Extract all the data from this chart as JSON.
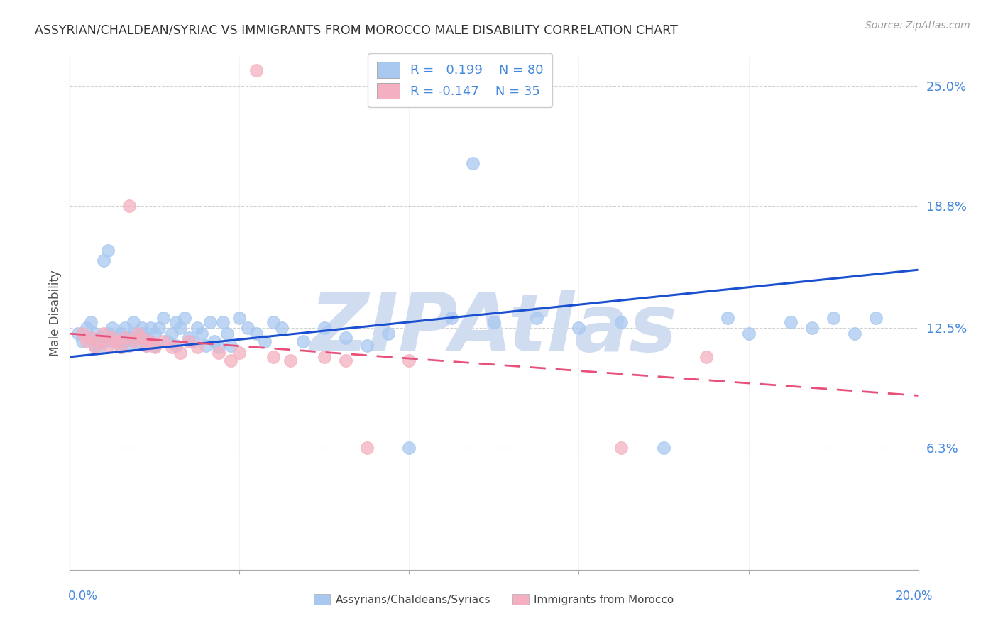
{
  "title": "ASSYRIAN/CHALDEAN/SYRIAC VS IMMIGRANTS FROM MOROCCO MALE DISABILITY CORRELATION CHART",
  "source": "Source: ZipAtlas.com",
  "ylabel": "Male Disability",
  "xlim": [
    0.0,
    0.2
  ],
  "ylim": [
    0.0,
    0.265
  ],
  "ytick_vals": [
    0.0,
    0.063,
    0.125,
    0.188,
    0.25
  ],
  "ytick_labels": [
    "",
    "6.3%",
    "12.5%",
    "18.8%",
    "25.0%"
  ],
  "r_blue": 0.199,
  "n_blue": 80,
  "r_pink": -0.147,
  "n_pink": 35,
  "blue_dot_color": "#A8C8F0",
  "pink_dot_color": "#F4B0C0",
  "blue_line_color": "#1A50D0",
  "pink_line_color": "#E8507A",
  "right_label_color": "#4488DD",
  "watermark_color": "#D0DCF0",
  "legend_label_blue": "Assyrians/Chaldeans/Syriacs",
  "legend_label_pink": "Immigrants from Morocco",
  "blue_x": [
    0.002,
    0.003,
    0.004,
    0.005,
    0.005,
    0.006,
    0.006,
    0.007,
    0.007,
    0.008,
    0.008,
    0.009,
    0.009,
    0.01,
    0.01,
    0.011,
    0.011,
    0.012,
    0.012,
    0.013,
    0.013,
    0.014,
    0.014,
    0.015,
    0.015,
    0.016,
    0.016,
    0.017,
    0.017,
    0.018,
    0.018,
    0.019,
    0.019,
    0.02,
    0.02,
    0.021,
    0.022,
    0.023,
    0.024,
    0.025,
    0.025,
    0.026,
    0.027,
    0.028,
    0.029,
    0.03,
    0.031,
    0.032,
    0.033,
    0.034,
    0.035,
    0.036,
    0.037,
    0.038,
    0.04,
    0.042,
    0.044,
    0.046,
    0.048,
    0.05,
    0.055,
    0.06,
    0.065,
    0.07,
    0.075,
    0.08,
    0.09,
    0.095,
    0.1,
    0.11,
    0.12,
    0.13,
    0.14,
    0.155,
    0.16,
    0.17,
    0.175,
    0.18,
    0.185,
    0.19
  ],
  "blue_y": [
    0.122,
    0.118,
    0.125,
    0.128,
    0.119,
    0.122,
    0.116,
    0.12,
    0.115,
    0.16,
    0.118,
    0.165,
    0.122,
    0.118,
    0.125,
    0.12,
    0.118,
    0.122,
    0.115,
    0.118,
    0.125,
    0.12,
    0.116,
    0.122,
    0.128,
    0.12,
    0.118,
    0.125,
    0.122,
    0.116,
    0.12,
    0.118,
    0.125,
    0.122,
    0.116,
    0.125,
    0.13,
    0.118,
    0.122,
    0.128,
    0.116,
    0.125,
    0.13,
    0.12,
    0.118,
    0.125,
    0.122,
    0.116,
    0.128,
    0.118,
    0.115,
    0.128,
    0.122,
    0.116,
    0.13,
    0.125,
    0.122,
    0.118,
    0.128,
    0.125,
    0.118,
    0.125,
    0.12,
    0.116,
    0.122,
    0.063,
    0.13,
    0.21,
    0.128,
    0.13,
    0.125,
    0.128,
    0.063,
    0.13,
    0.122,
    0.128,
    0.125,
    0.13,
    0.122,
    0.13
  ],
  "pink_x": [
    0.003,
    0.004,
    0.005,
    0.006,
    0.007,
    0.008,
    0.009,
    0.01,
    0.011,
    0.012,
    0.013,
    0.014,
    0.015,
    0.016,
    0.017,
    0.018,
    0.019,
    0.02,
    0.022,
    0.024,
    0.026,
    0.028,
    0.03,
    0.035,
    0.038,
    0.04,
    0.044,
    0.048,
    0.052,
    0.06,
    0.065,
    0.07,
    0.08,
    0.13,
    0.15
  ],
  "pink_y": [
    0.122,
    0.118,
    0.12,
    0.115,
    0.118,
    0.122,
    0.116,
    0.12,
    0.118,
    0.115,
    0.12,
    0.188,
    0.118,
    0.122,
    0.12,
    0.116,
    0.118,
    0.115,
    0.118,
    0.115,
    0.112,
    0.118,
    0.115,
    0.112,
    0.108,
    0.112,
    0.258,
    0.11,
    0.108,
    0.11,
    0.108,
    0.063,
    0.108,
    0.063,
    0.11
  ],
  "blue_line_y0": 0.11,
  "blue_line_y1": 0.155,
  "pink_line_y0": 0.122,
  "pink_line_y1": 0.09
}
